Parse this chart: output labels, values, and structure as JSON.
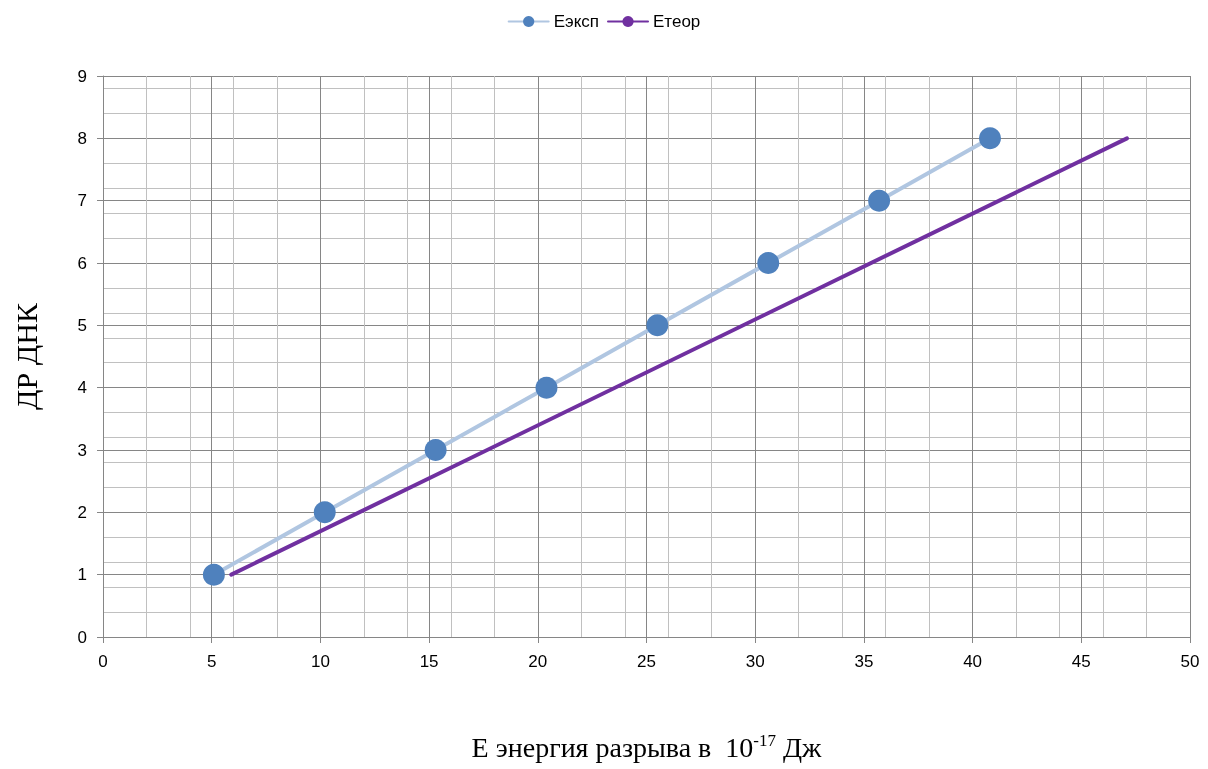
{
  "chart_data": {
    "type": "line",
    "xlabel": "E энергия разрыва в  10$^{-17}$ Дж",
    "ylabel": "ДР ДНК",
    "xlim": [
      0,
      50
    ],
    "xticks": [
      0,
      5,
      10,
      15,
      20,
      25,
      30,
      35,
      40,
      45,
      50
    ],
    "ylim": [
      0,
      9
    ],
    "yticks": [
      0,
      1,
      2,
      3,
      4,
      5,
      6,
      7,
      8,
      9
    ],
    "grid": true,
    "legend": "top",
    "series": [
      {
        "name": "Еэксп",
        "color": "#4f81bd",
        "marker": "circle",
        "x": [
          5.1,
          10.2,
          15.3,
          20.4,
          25.5,
          30.6,
          35.7,
          40.8
        ],
        "values": [
          1,
          2,
          3,
          4,
          5,
          6,
          7,
          8
        ]
      },
      {
        "name": "Етеор",
        "color": "#7030a0",
        "marker": "none",
        "x": [
          5.9,
          47.1
        ],
        "values": [
          1,
          8
        ]
      }
    ]
  }
}
